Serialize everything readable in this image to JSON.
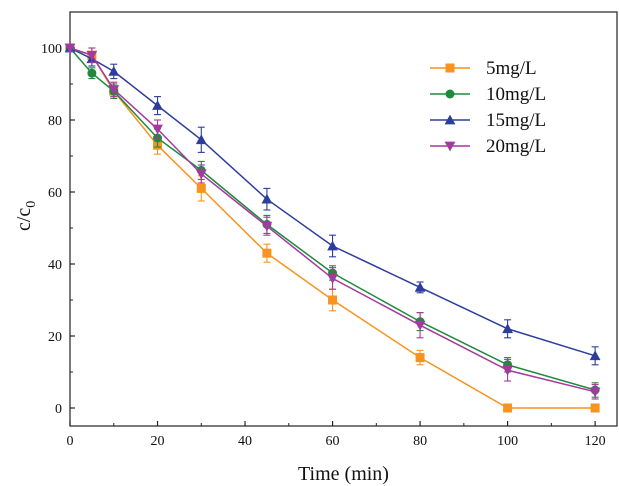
{
  "chart_data": {
    "type": "line",
    "xlabel": "Time (min)",
    "ylabel": {
      "main": "c/c",
      "sub": "0"
    },
    "xlim": [
      0,
      125
    ],
    "ylim": [
      -5,
      110
    ],
    "xticks": [
      0,
      20,
      40,
      60,
      80,
      100,
      120
    ],
    "yticks": [
      0,
      20,
      40,
      60,
      80,
      100
    ],
    "grid": false,
    "legend_position": "top-right",
    "x": [
      0,
      5,
      10,
      20,
      30,
      45,
      60,
      80,
      100,
      120
    ],
    "series": [
      {
        "name": "5mg/L",
        "color": "#f7931e",
        "marker": "square",
        "values": [
          100,
          98,
          88,
          73,
          61,
          43,
          30,
          14,
          0,
          0
        ],
        "errors": [
          1,
          2,
          2,
          2.5,
          3.5,
          2.5,
          3,
          2,
          0,
          0
        ]
      },
      {
        "name": "10mg/L",
        "color": "#1f8a3c",
        "marker": "circle",
        "values": [
          100,
          93,
          88,
          75,
          66,
          51,
          37.5,
          24,
          12,
          5
        ],
        "errors": [
          1,
          1.5,
          2,
          2.5,
          2.5,
          2.5,
          2,
          2.5,
          2,
          2
        ]
      },
      {
        "name": "15mg/L",
        "color": "#2d3d9c",
        "marker": "triangle",
        "values": [
          100,
          97,
          93.5,
          84,
          74.5,
          58,
          45,
          33.5,
          22,
          14.5
        ],
        "errors": [
          1,
          2,
          2,
          2.5,
          3.5,
          3,
          3,
          1.5,
          2.5,
          2.5
        ]
      },
      {
        "name": "20mg/L",
        "color": "#a4399f",
        "marker": "triangle-down",
        "values": [
          100,
          98,
          88.5,
          77.5,
          65,
          50.5,
          36,
          23,
          10.5,
          4.5
        ],
        "errors": [
          1,
          2,
          2,
          2.5,
          2.5,
          2.5,
          3,
          3.5,
          3,
          2
        ]
      }
    ]
  }
}
